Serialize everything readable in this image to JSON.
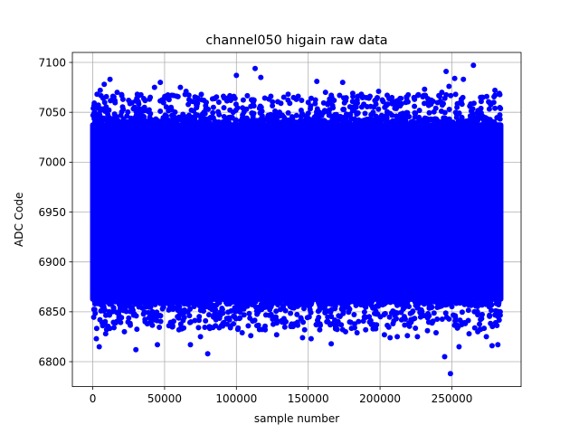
{
  "chart_data": {
    "type": "scatter",
    "title": "channel050 higain raw data",
    "xlabel": "sample number",
    "ylabel": "ADC Code",
    "xlim": [
      -14200,
      298200
    ],
    "ylim": [
      6775,
      7110
    ],
    "x_ticks": [
      0,
      50000,
      100000,
      150000,
      200000,
      250000
    ],
    "x_tick_labels": [
      "0",
      "50000",
      "100000",
      "150000",
      "200000",
      "250000"
    ],
    "y_ticks": [
      6800,
      6850,
      6900,
      6950,
      7000,
      7050,
      7100
    ],
    "y_tick_labels": [
      "6800",
      "6850",
      "6900",
      "6950",
      "7000",
      "7050",
      "7100"
    ],
    "grid": true,
    "marker": "circle",
    "color": "#0000ff",
    "x_range": [
      0,
      284000
    ],
    "dense_band": [
      6860,
      7040
    ],
    "series": [
      {
        "x": [
          1500,
          3000,
          5200,
          8000,
          12000,
          14000,
          17000,
          21000,
          25000,
          31000,
          36000,
          40000,
          43000,
          47000,
          55000,
          61000,
          65000,
          72000,
          79000,
          84000,
          91000,
          96000,
          100000,
          113000,
          117000,
          124000,
          131000,
          136000,
          143000,
          150000,
          156000,
          162000,
          168000,
          174000,
          181000,
          187000,
          193000,
          199000,
          205000,
          211000,
          218000,
          224000,
          231000,
          237000,
          243000,
          246000,
          248000,
          252000,
          258000,
          265000,
          271000,
          276000,
          280000,
          283000,
          2500,
          4500,
          9000,
          16000,
          22000,
          30000,
          38000,
          45000,
          53000,
          60000,
          68000,
          75000,
          80000,
          88000,
          98000,
          104000,
          110000,
          120000,
          128000,
          138000,
          146000,
          152000,
          158000,
          166000,
          176000,
          184000,
          190000,
          197000,
          203000,
          207000,
          212000,
          219000,
          226000,
          233000,
          239000,
          245000,
          249000,
          255000,
          262000,
          268000,
          274000,
          278000,
          282000
        ],
        "y": [
          7050,
          7068,
          7072,
          7078,
          7083,
          7066,
          7070,
          7063,
          7062,
          7068,
          7055,
          7065,
          7075,
          7080,
          7067,
          7075,
          7071,
          7058,
          7060,
          7055,
          7066,
          7062,
          7087,
          7094,
          7085,
          7066,
          7059,
          7068,
          7066,
          7060,
          7081,
          7070,
          7062,
          7080,
          7069,
          7068,
          7066,
          7071,
          7067,
          7061,
          7060,
          7063,
          7073,
          7061,
          7070,
          7091,
          7076,
          7084,
          7083,
          7097,
          7065,
          7060,
          7072,
          7069,
          6823,
          6815,
          6828,
          6839,
          6830,
          6812,
          6838,
          6817,
          6836,
          6832,
          6817,
          6825,
          6808,
          6834,
          6838,
          6829,
          6826,
          6832,
          6827,
          6836,
          6824,
          6823,
          6832,
          6818,
          6830,
          6829,
          6832,
          6833,
          6827,
          6824,
          6825,
          6826,
          6825,
          6831,
          6829,
          6805,
          6788,
          6815,
          6828,
          6830,
          6825,
          6816,
          6817
        ]
      }
    ]
  }
}
